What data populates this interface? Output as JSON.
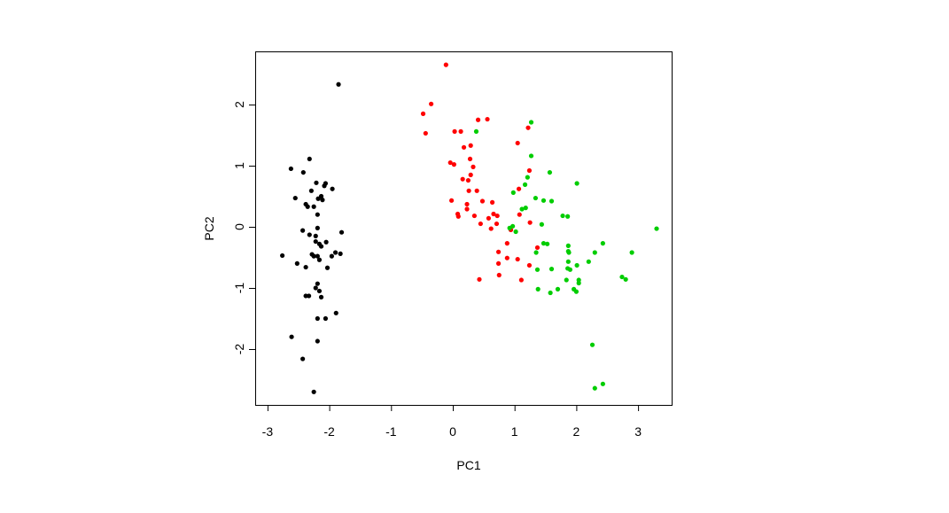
{
  "chart_data": {
    "type": "scatter",
    "title": "",
    "xlabel": "PC1",
    "ylabel": "PC2",
    "xlim": [
      -3.2,
      3.55
    ],
    "ylim": [
      -2.92,
      2.86
    ],
    "grid": false,
    "legend": "none",
    "x_ticks": [
      -3,
      -2,
      -1,
      0,
      1,
      2,
      3
    ],
    "y_ticks": [
      -2,
      -1,
      0,
      1,
      2
    ],
    "x_tick_labels": [
      "-3",
      "-2",
      "-1",
      "0",
      "1",
      "2",
      "3"
    ],
    "y_tick_labels": [
      "-2",
      "-1",
      "0",
      "1",
      "2"
    ],
    "series": [
      {
        "color": "#000000",
        "points": [
          [
            -1.85,
            2.33
          ],
          [
            -2.32,
            1.11
          ],
          [
            -2.62,
            0.95
          ],
          [
            -2.42,
            0.89
          ],
          [
            -2.21,
            0.72
          ],
          [
            -2.06,
            0.71
          ],
          [
            -2.08,
            0.67
          ],
          [
            -1.95,
            0.62
          ],
          [
            -2.29,
            0.59
          ],
          [
            -2.55,
            0.47
          ],
          [
            -2.13,
            0.5
          ],
          [
            -2.18,
            0.46
          ],
          [
            -2.11,
            0.44
          ],
          [
            -2.38,
            0.37
          ],
          [
            -2.35,
            0.33
          ],
          [
            -2.25,
            0.33
          ],
          [
            -2.19,
            0.2
          ],
          [
            -2.19,
            -0.02
          ],
          [
            -2.43,
            -0.06
          ],
          [
            -1.8,
            -0.09
          ],
          [
            -2.32,
            -0.13
          ],
          [
            -2.22,
            -0.15
          ],
          [
            -2.22,
            -0.24
          ],
          [
            -2.05,
            -0.25
          ],
          [
            -2.16,
            -0.28
          ],
          [
            -2.13,
            -0.32
          ],
          [
            -2.76,
            -0.47
          ],
          [
            -2.28,
            -0.45
          ],
          [
            -2.25,
            -0.48
          ],
          [
            -2.19,
            -0.48
          ],
          [
            -2.16,
            -0.54
          ],
          [
            -1.96,
            -0.48
          ],
          [
            -1.9,
            -0.42
          ],
          [
            -1.82,
            -0.44
          ],
          [
            -2.52,
            -0.6
          ],
          [
            -2.38,
            -0.66
          ],
          [
            -2.03,
            -0.67
          ],
          [
            -2.19,
            -0.93
          ],
          [
            -2.22,
            -1.0
          ],
          [
            -2.16,
            -1.05
          ],
          [
            -2.38,
            -1.13
          ],
          [
            -2.33,
            -1.13
          ],
          [
            -2.13,
            -1.15
          ],
          [
            -1.89,
            -1.41
          ],
          [
            -2.19,
            -1.5
          ],
          [
            -2.06,
            -1.5
          ],
          [
            -2.61,
            -1.8
          ],
          [
            -2.19,
            -1.87
          ],
          [
            -2.43,
            -2.16
          ],
          [
            -2.25,
            -2.7
          ]
        ]
      },
      {
        "color": "#FF0000",
        "points": [
          [
            -0.11,
            2.65
          ],
          [
            -0.35,
            2.01
          ],
          [
            -0.48,
            1.85
          ],
          [
            0.41,
            1.75
          ],
          [
            0.56,
            1.76
          ],
          [
            1.22,
            1.62
          ],
          [
            -0.44,
            1.53
          ],
          [
            0.03,
            1.56
          ],
          [
            0.13,
            1.56
          ],
          [
            1.05,
            1.37
          ],
          [
            0.18,
            1.3
          ],
          [
            0.29,
            1.33
          ],
          [
            0.28,
            1.11
          ],
          [
            -0.04,
            1.05
          ],
          [
            0.02,
            1.02
          ],
          [
            0.33,
            0.98
          ],
          [
            1.24,
            0.92
          ],
          [
            0.29,
            0.85
          ],
          [
            0.16,
            0.78
          ],
          [
            0.25,
            0.76
          ],
          [
            1.07,
            0.62
          ],
          [
            0.26,
            0.59
          ],
          [
            0.39,
            0.59
          ],
          [
            -0.02,
            0.43
          ],
          [
            0.48,
            0.42
          ],
          [
            0.64,
            0.4
          ],
          [
            0.23,
            0.37
          ],
          [
            0.23,
            0.29
          ],
          [
            0.08,
            0.21
          ],
          [
            0.09,
            0.17
          ],
          [
            0.35,
            0.18
          ],
          [
            0.66,
            0.21
          ],
          [
            0.72,
            0.18
          ],
          [
            1.08,
            0.2
          ],
          [
            0.58,
            0.14
          ],
          [
            0.45,
            0.05
          ],
          [
            0.71,
            0.05
          ],
          [
            1.25,
            0.07
          ],
          [
            0.62,
            -0.03
          ],
          [
            0.94,
            -0.05
          ],
          [
            0.88,
            -0.27
          ],
          [
            1.37,
            -0.34
          ],
          [
            0.74,
            -0.41
          ],
          [
            0.88,
            -0.51
          ],
          [
            1.05,
            -0.53
          ],
          [
            0.74,
            -0.6
          ],
          [
            1.24,
            -0.63
          ],
          [
            0.75,
            -0.79
          ],
          [
            0.43,
            -0.86
          ],
          [
            1.11,
            -0.87
          ]
        ]
      },
      {
        "color": "#00CD00",
        "points": [
          [
            1.27,
            1.71
          ],
          [
            0.38,
            1.56
          ],
          [
            1.27,
            1.16
          ],
          [
            1.57,
            0.89
          ],
          [
            1.21,
            0.81
          ],
          [
            1.17,
            0.69
          ],
          [
            2.01,
            0.71
          ],
          [
            0.98,
            0.56
          ],
          [
            1.34,
            0.47
          ],
          [
            1.47,
            0.43
          ],
          [
            1.6,
            0.42
          ],
          [
            1.12,
            0.29
          ],
          [
            1.18,
            0.31
          ],
          [
            1.78,
            0.18
          ],
          [
            1.86,
            0.17
          ],
          [
            1.44,
            0.04
          ],
          [
            0.92,
            -0.02
          ],
          [
            0.97,
            0.01
          ],
          [
            1.02,
            -0.08
          ],
          [
            3.3,
            -0.03
          ],
          [
            1.47,
            -0.27
          ],
          [
            1.53,
            -0.28
          ],
          [
            2.43,
            -0.27
          ],
          [
            1.87,
            -0.31
          ],
          [
            1.35,
            -0.42
          ],
          [
            1.87,
            -0.4
          ],
          [
            1.88,
            -0.42
          ],
          [
            2.3,
            -0.42
          ],
          [
            2.9,
            -0.42
          ],
          [
            2.2,
            -0.57
          ],
          [
            1.87,
            -0.57
          ],
          [
            2.01,
            -0.63
          ],
          [
            1.6,
            -0.69
          ],
          [
            1.37,
            -0.7
          ],
          [
            1.86,
            -0.68
          ],
          [
            1.9,
            -0.7
          ],
          [
            2.74,
            -0.82
          ],
          [
            2.8,
            -0.86
          ],
          [
            1.84,
            -0.87
          ],
          [
            2.04,
            -0.87
          ],
          [
            2.04,
            -0.92
          ],
          [
            1.38,
            -1.02
          ],
          [
            1.7,
            -1.02
          ],
          [
            1.96,
            -1.02
          ],
          [
            1.58,
            -1.08
          ],
          [
            2.0,
            -1.06
          ],
          [
            2.26,
            -1.93
          ],
          [
            2.43,
            -2.57
          ],
          [
            2.3,
            -2.64
          ]
        ]
      }
    ]
  }
}
